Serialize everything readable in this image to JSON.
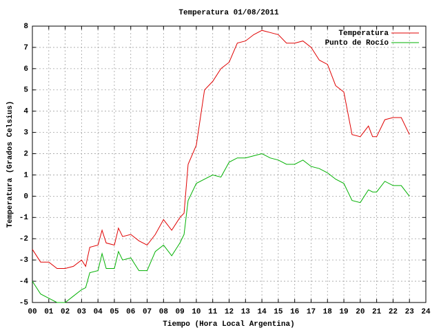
{
  "chart_data": {
    "type": "line",
    "title": "Temperatura 01/08/2011",
    "x_label": "Tiempo (Hora Local Argentina)",
    "y_label": "Temperatura (Grados Celsius)",
    "x": [
      0,
      0.5,
      1,
      1.5,
      2,
      2.5,
      3,
      3.25,
      3.5,
      4,
      4.25,
      4.5,
      5,
      5.25,
      5.5,
      6,
      6.5,
      7,
      7.5,
      8,
      8.5,
      9,
      9.25,
      9.5,
      10,
      10.5,
      11,
      11.5,
      12,
      12.5,
      13,
      13.5,
      14,
      14.5,
      15,
      15.5,
      16,
      16.5,
      17,
      17.5,
      18,
      18.5,
      19,
      19.5,
      20,
      20.5,
      20.75,
      21,
      21.5,
      22,
      22.5,
      23
    ],
    "series": [
      {
        "name": "Temperatura",
        "color": "#e00000",
        "values": [
          -2.5,
          -3.1,
          -3.1,
          -3.4,
          -3.4,
          -3.3,
          -3.0,
          -3.3,
          -2.4,
          -2.3,
          -1.6,
          -2.2,
          -2.3,
          -1.5,
          -1.9,
          -1.8,
          -2.1,
          -2.3,
          -1.8,
          -1.1,
          -1.6,
          -1.0,
          -0.8,
          1.5,
          2.4,
          5.0,
          5.4,
          6.0,
          6.3,
          7.2,
          7.3,
          7.6,
          7.8,
          7.7,
          7.6,
          7.2,
          7.2,
          7.3,
          7.0,
          6.4,
          6.2,
          5.2,
          4.9,
          2.9,
          2.8,
          3.3,
          2.8,
          2.8,
          3.6,
          3.7,
          3.7,
          2.9
        ]
      },
      {
        "name": "Punto de Rocío",
        "color": "#00b000",
        "values": [
          -4.0,
          -4.6,
          -4.8,
          -5.0,
          -5.0,
          -4.7,
          -4.4,
          -4.3,
          -3.6,
          -3.5,
          -2.7,
          -3.4,
          -3.4,
          -2.6,
          -3.0,
          -2.9,
          -3.5,
          -3.5,
          -2.6,
          -2.3,
          -2.8,
          -2.2,
          -1.8,
          -0.2,
          0.6,
          0.8,
          1.0,
          0.9,
          1.6,
          1.8,
          1.8,
          1.9,
          2.0,
          1.8,
          1.7,
          1.5,
          1.5,
          1.7,
          1.4,
          1.3,
          1.1,
          0.8,
          0.6,
          -0.2,
          -0.3,
          0.3,
          0.2,
          0.2,
          0.7,
          0.5,
          0.5,
          0.0
        ]
      }
    ],
    "xlim": [
      0,
      24
    ],
    "xticks": [
      {
        "value": 0,
        "label": "00"
      },
      {
        "value": 1,
        "label": "01"
      },
      {
        "value": 2,
        "label": "02"
      },
      {
        "value": 3,
        "label": "03"
      },
      {
        "value": 4,
        "label": "04"
      },
      {
        "value": 5,
        "label": "05"
      },
      {
        "value": 6,
        "label": "06"
      },
      {
        "value": 7,
        "label": "07"
      },
      {
        "value": 8,
        "label": "08"
      },
      {
        "value": 9,
        "label": "09"
      },
      10,
      11,
      12,
      13,
      14,
      15,
      16,
      17,
      18,
      19,
      20,
      21,
      22,
      23,
      24
    ],
    "ylim": [
      -5,
      8
    ],
    "yticks": [
      -5,
      -4,
      -3,
      -2,
      -1,
      0,
      1,
      2,
      3,
      4,
      5,
      6,
      7,
      8
    ],
    "grid": true,
    "legend": "top-right"
  }
}
